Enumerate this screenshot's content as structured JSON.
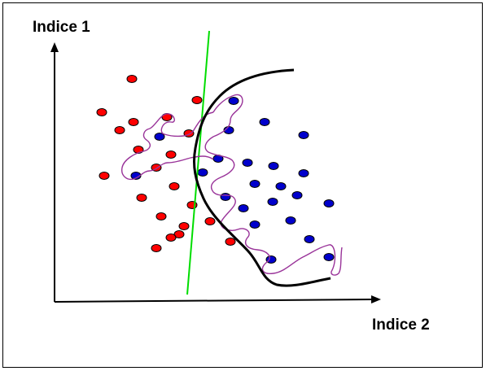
{
  "diagram": {
    "y_axis_label": "Indice 1",
    "x_axis_label": "Indice 2",
    "colors": {
      "class_a": "#ff0000",
      "class_b": "#0000cc",
      "point_outline": "#000000",
      "linear_boundary": "#00dd00",
      "smooth_boundary": "#000000",
      "overfit_boundary": "#993399",
      "axes": "#000000"
    },
    "legend": "none",
    "grid": false
  }
}
